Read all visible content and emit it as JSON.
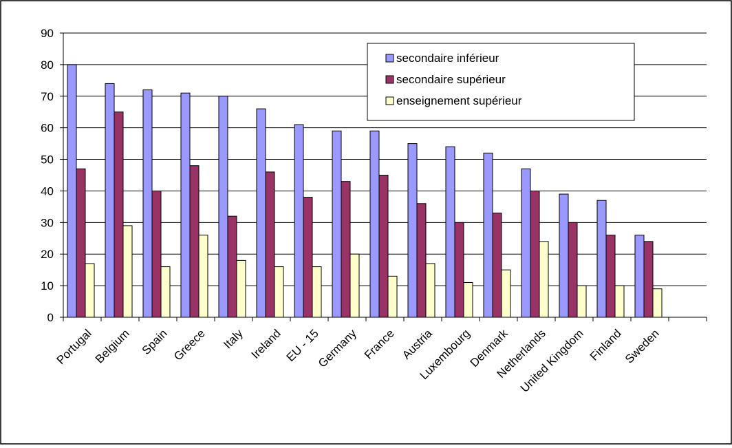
{
  "chart_data": {
    "type": "bar",
    "title": "",
    "xlabel": "",
    "ylabel": "",
    "ylim": [
      0,
      90
    ],
    "yticks": [
      0,
      10,
      20,
      30,
      40,
      50,
      60,
      70,
      80,
      90
    ],
    "grid": true,
    "legend_position": "top-right",
    "categories": [
      "Portugal",
      "Belgium",
      "Spain",
      "Greece",
      "Italy",
      "Ireland",
      "EU - 15",
      "Germany",
      "France",
      "Austria",
      "Luxembourg",
      "Denmark",
      "Netherlands",
      "United Kingdom",
      "Finland",
      "Sweden"
    ],
    "series": [
      {
        "name": "secondaire inférieur",
        "color": "#9999ff",
        "values": [
          80,
          74,
          72,
          71,
          70,
          66,
          61,
          59,
          59,
          55,
          54,
          52,
          47,
          39,
          37,
          26
        ]
      },
      {
        "name": "secondaire supérieur",
        "color": "#993366",
        "values": [
          47,
          65,
          40,
          48,
          32,
          46,
          38,
          43,
          45,
          36,
          30,
          33,
          40,
          30,
          26,
          24
        ]
      },
      {
        "name": "enseignement supérieur",
        "color": "#ffffcc",
        "values": [
          17,
          29,
          16,
          26,
          18,
          16,
          16,
          20,
          13,
          17,
          11,
          15,
          24,
          10,
          10,
          9
        ]
      }
    ]
  }
}
